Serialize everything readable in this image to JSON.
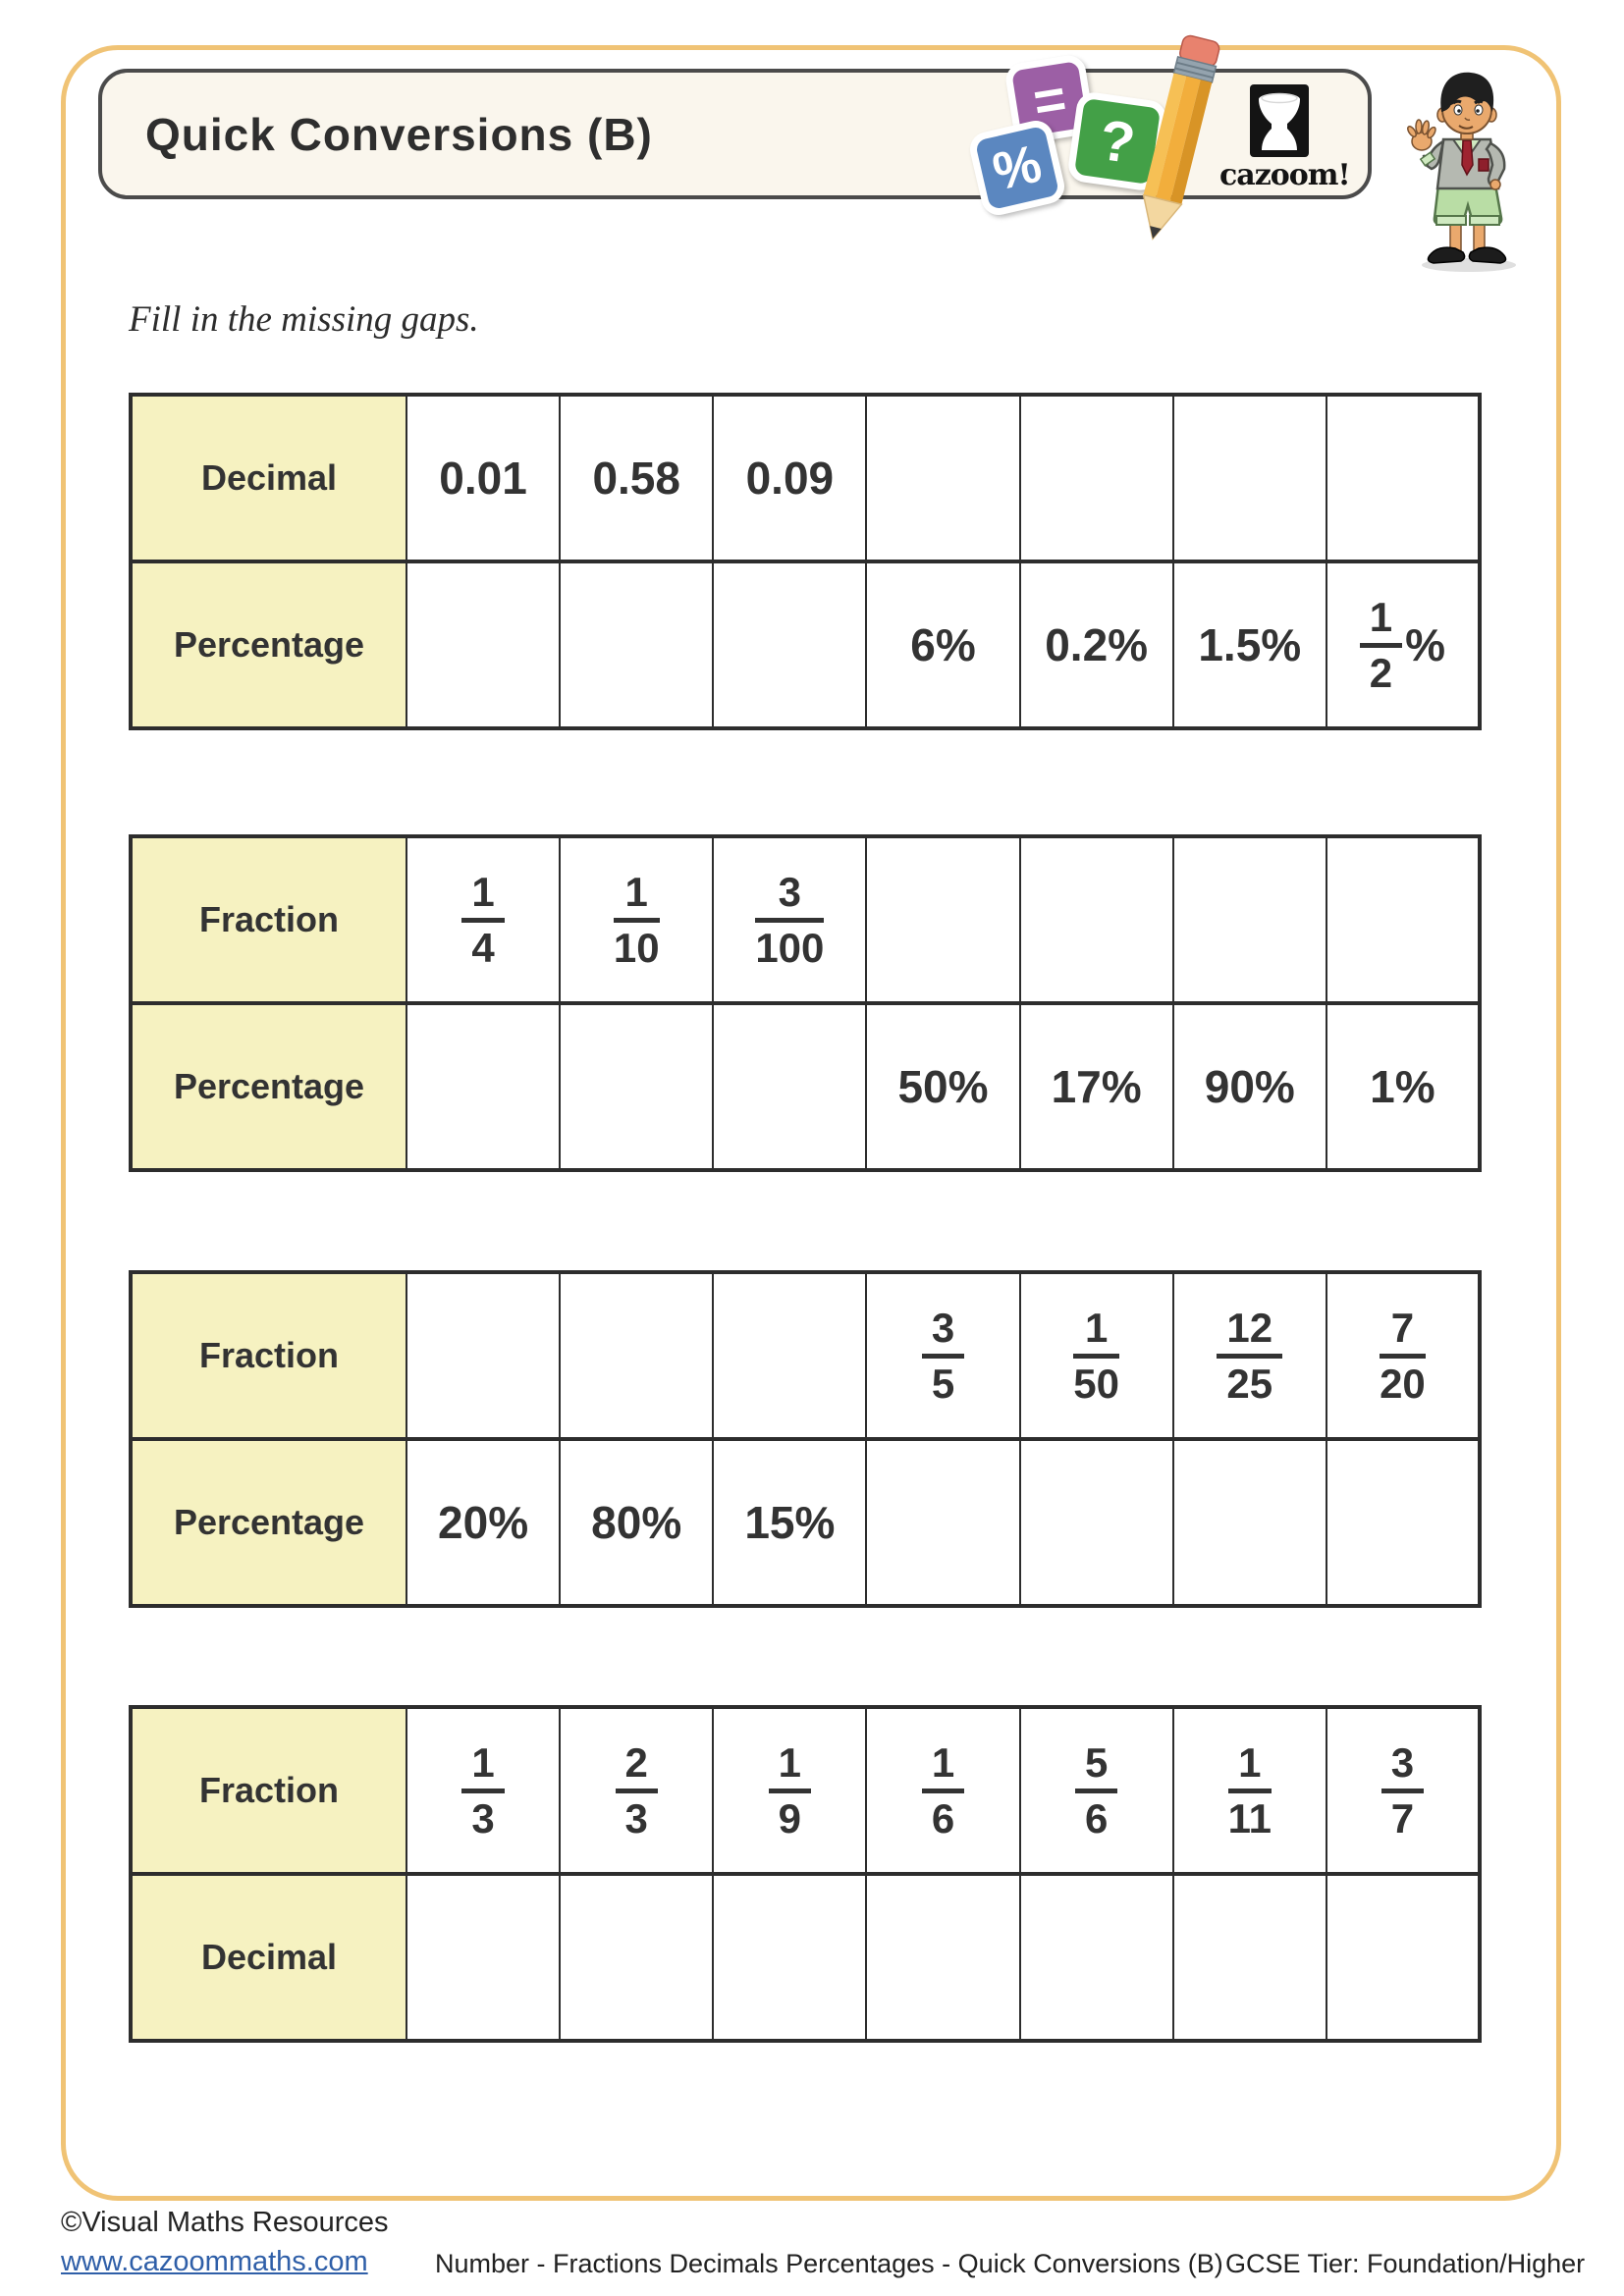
{
  "page": {
    "title": "Quick Conversions (B)",
    "instruction": "Fill in the missing gaps.",
    "logo_text": "cazoom!"
  },
  "icons": {
    "equals_tile": "=",
    "question_tile": "?",
    "percent_tile": "%"
  },
  "colors": {
    "page_border": "#f0c375",
    "title_box_bg": "#faf6ed",
    "header_cell_yellow": "#f6f2c1",
    "table_border": "#2d2d2d",
    "link_blue": "#2f5fa8",
    "tile_purple": "#9c5fa5",
    "tile_green": "#43a047",
    "tile_blue": "#5b87c0",
    "pencil_yellow": "#f2ae3c"
  },
  "tables": [
    {
      "rows": [
        {
          "label": "Decimal",
          "cells": [
            {
              "t": "0.01"
            },
            {
              "t": "0.58"
            },
            {
              "t": "0.09"
            },
            {},
            {},
            {},
            {}
          ]
        },
        {
          "label": "Percentage",
          "cells": [
            {},
            {},
            {},
            {
              "t": "6%"
            },
            {
              "t": "0.2%"
            },
            {
              "t": "1.5%"
            },
            {
              "f": [
                "1",
                "2"
              ],
              "suffix": "%"
            }
          ]
        }
      ]
    },
    {
      "rows": [
        {
          "label": "Fraction",
          "cells": [
            {
              "f": [
                "1",
                "4"
              ]
            },
            {
              "f": [
                "1",
                "10"
              ]
            },
            {
              "f": [
                "3",
                "100"
              ]
            },
            {},
            {},
            {},
            {}
          ]
        },
        {
          "label": "Percentage",
          "cells": [
            {},
            {},
            {},
            {
              "t": "50%"
            },
            {
              "t": "17%"
            },
            {
              "t": "90%"
            },
            {
              "t": "1%"
            }
          ]
        }
      ]
    },
    {
      "rows": [
        {
          "label": "Fraction",
          "cells": [
            {},
            {},
            {},
            {
              "f": [
                "3",
                "5"
              ]
            },
            {
              "f": [
                "1",
                "50"
              ]
            },
            {
              "f": [
                "12",
                "25"
              ]
            },
            {
              "f": [
                "7",
                "20"
              ]
            }
          ]
        },
        {
          "label": "Percentage",
          "cells": [
            {
              "t": "20%"
            },
            {
              "t": "80%"
            },
            {
              "t": "15%"
            },
            {},
            {},
            {},
            {}
          ]
        }
      ]
    },
    {
      "rows": [
        {
          "label": "Fraction",
          "cells": [
            {
              "f": [
                "1",
                "3"
              ]
            },
            {
              "f": [
                "2",
                "3"
              ]
            },
            {
              "f": [
                "1",
                "9"
              ]
            },
            {
              "f": [
                "1",
                "6"
              ]
            },
            {
              "f": [
                "5",
                "6"
              ]
            },
            {
              "f": [
                "1",
                "11"
              ]
            },
            {
              "f": [
                "3",
                "7"
              ]
            }
          ]
        },
        {
          "label": "Decimal",
          "cells": [
            {},
            {},
            {},
            {},
            {},
            {},
            {}
          ]
        }
      ]
    }
  ],
  "footer": {
    "copyright": "©Visual Maths Resources",
    "link": "www.cazoommaths.com",
    "topic": "Number - Fractions Decimals Percentages - Quick Conversions (B)",
    "tier": "GCSE Tier: Foundation/Higher"
  }
}
